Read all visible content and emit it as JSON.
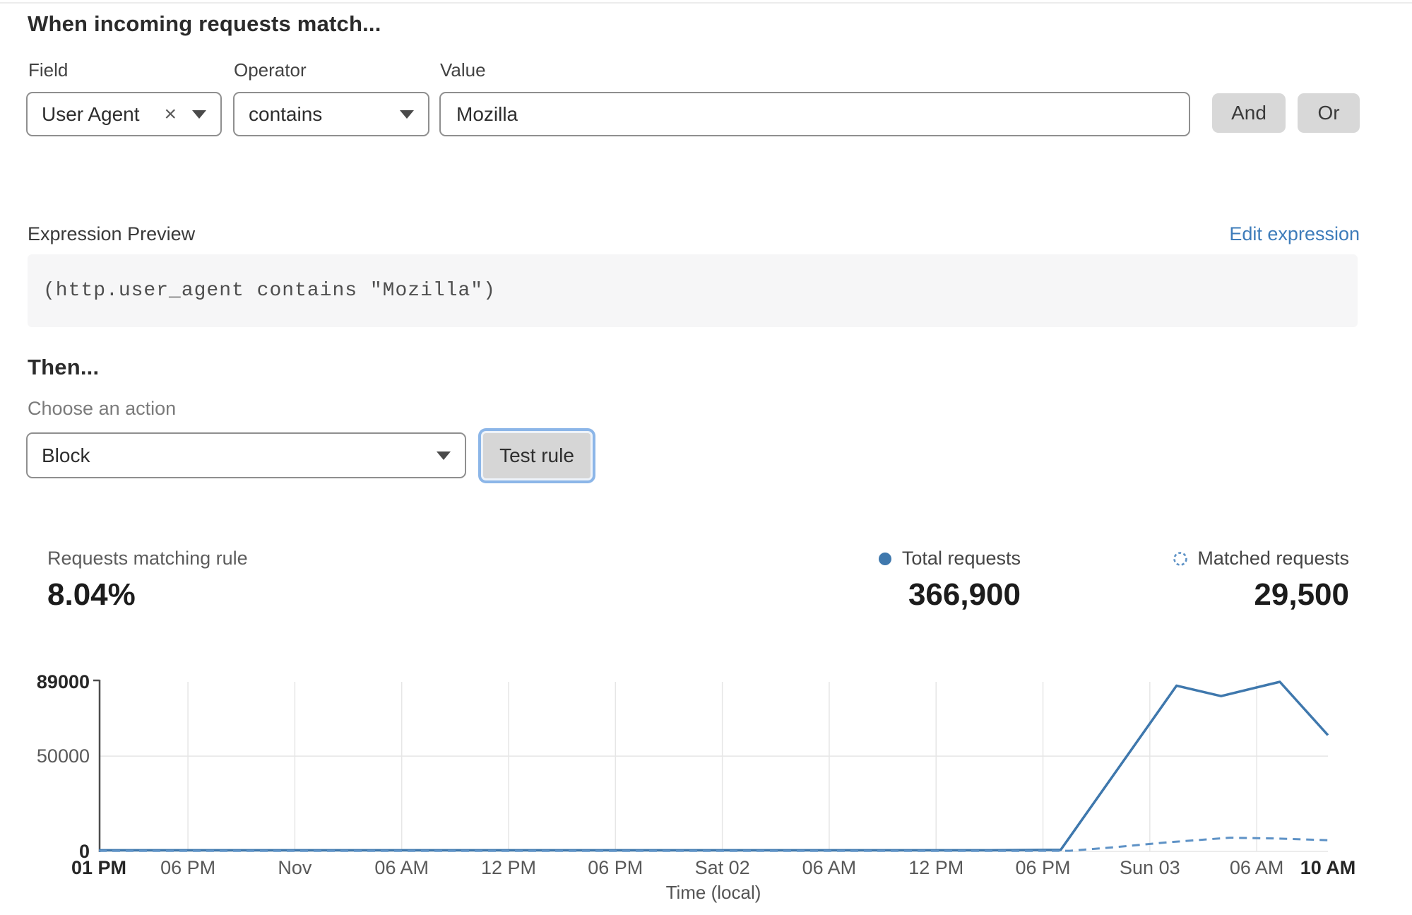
{
  "rule_builder": {
    "heading": "When incoming requests match...",
    "field": {
      "label": "Field",
      "value": "User Agent",
      "clear_icon": "×"
    },
    "operator": {
      "label": "Operator",
      "value": "contains"
    },
    "value": {
      "label": "Value",
      "value": "Mozilla"
    },
    "and_label": "And",
    "or_label": "Or"
  },
  "expression": {
    "label": "Expression Preview",
    "edit_link": "Edit expression",
    "code": "(http.user_agent contains \"Mozilla\")"
  },
  "action": {
    "heading": "Then...",
    "label": "Choose an action",
    "value": "Block",
    "test_button": "Test rule"
  },
  "stats": {
    "matching": {
      "label": "Requests matching rule",
      "value": "8.04%"
    },
    "total": {
      "label": "Total requests",
      "value": "366,900"
    },
    "matched": {
      "label": "Matched requests",
      "value": "29,500"
    }
  },
  "colors": {
    "line_solid": "#3f78ad",
    "line_dashed": "#5e92c6",
    "link_blue": "#3e7cba",
    "focus_ring": "#8cb6e8",
    "grid": "#e6e6e6",
    "axis": "#4d4d4d"
  },
  "chart_data": {
    "type": "line",
    "title": "",
    "xlabel": "Time (local)",
    "ylabel": "",
    "ylim": [
      0,
      89000
    ],
    "grid": true,
    "x_unit": "hours from Fri 01 PM (h0) to Sun 10 AM (h69)",
    "xrange_hours": [
      0,
      69
    ],
    "yticks": [
      {
        "value": 0,
        "label": "0",
        "bold": true,
        "grid": true
      },
      {
        "value": 50000,
        "label": "50000",
        "bold": false,
        "grid": true
      },
      {
        "value": 89000,
        "label": "89000",
        "bold": true,
        "grid": false
      }
    ],
    "xticks": [
      {
        "hour": 0,
        "label": "01 PM",
        "bold": true
      },
      {
        "hour": 5,
        "label": "06 PM",
        "bold": false
      },
      {
        "hour": 11,
        "label": "Nov",
        "bold": false
      },
      {
        "hour": 17,
        "label": "06 AM",
        "bold": false
      },
      {
        "hour": 23,
        "label": "12 PM",
        "bold": false
      },
      {
        "hour": 29,
        "label": "06 PM",
        "bold": false
      },
      {
        "hour": 35,
        "label": "Sat 02",
        "bold": false
      },
      {
        "hour": 41,
        "label": "06 AM",
        "bold": false
      },
      {
        "hour": 47,
        "label": "12 PM",
        "bold": false
      },
      {
        "hour": 53,
        "label": "06 PM",
        "bold": false
      },
      {
        "hour": 59,
        "label": "Sun 03",
        "bold": false
      },
      {
        "hour": 65,
        "label": "06 AM",
        "bold": false
      },
      {
        "hour": 69,
        "label": "10 AM",
        "bold": true
      }
    ],
    "series": [
      {
        "name": "Total requests",
        "style": "solid",
        "color": "#3f78ad",
        "points": [
          [
            0,
            600
          ],
          [
            10,
            600
          ],
          [
            20,
            600
          ],
          [
            30,
            600
          ],
          [
            40,
            600
          ],
          [
            50,
            600
          ],
          [
            54,
            800
          ],
          [
            60.5,
            87000
          ],
          [
            63,
            81500
          ],
          [
            66.3,
            89000
          ],
          [
            69,
            61000
          ]
        ]
      },
      {
        "name": "Matched requests",
        "style": "dashed",
        "color": "#5e92c6",
        "points": [
          [
            0,
            250
          ],
          [
            10,
            250
          ],
          [
            20,
            250
          ],
          [
            30,
            250
          ],
          [
            40,
            250
          ],
          [
            50,
            250
          ],
          [
            54.5,
            350
          ],
          [
            57,
            2200
          ],
          [
            60,
            4800
          ],
          [
            63.5,
            7200
          ],
          [
            66,
            6800
          ],
          [
            69,
            5900
          ]
        ]
      }
    ]
  }
}
